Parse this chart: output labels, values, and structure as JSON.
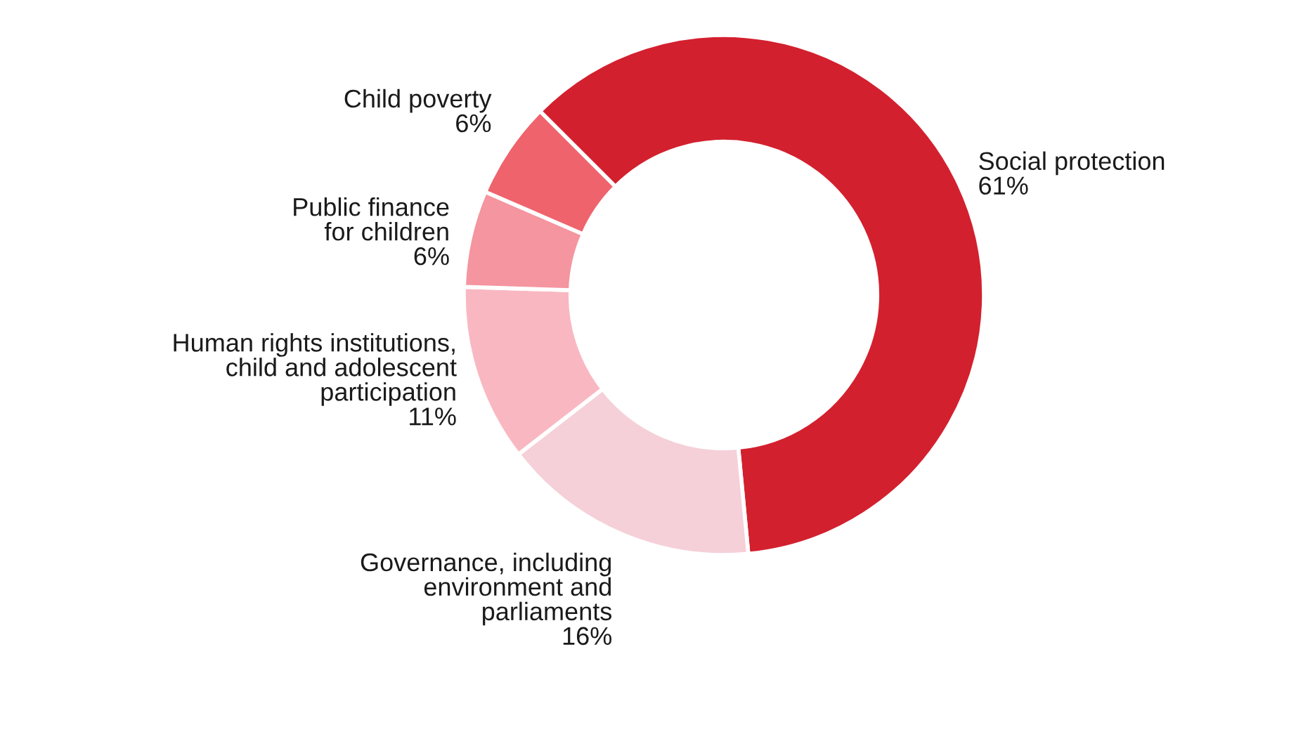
{
  "chart_data": {
    "type": "donut",
    "categories": [
      "Social protection",
      "Governance, including\nenvironment and\nparliaments",
      "Human rights institutions,\nchild and adolescent\nparticipation",
      "Public finance\nfor children",
      "Child poverty"
    ],
    "values": [
      61,
      16,
      11,
      6,
      6
    ],
    "colors": [
      "#d3202e",
      "#f5d0d8",
      "#f9b8c1",
      "#f4959f",
      "#ef636d"
    ],
    "value_labels": [
      "61%",
      "16%",
      "11%",
      "6%",
      "6%"
    ],
    "legend": false
  }
}
